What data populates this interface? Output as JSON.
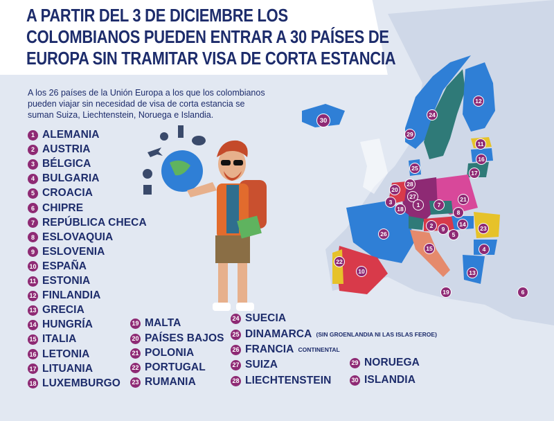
{
  "title": {
    "lines": [
      "A PARTIR DEL 3 DE DICIEMBRE LOS",
      "COLOMBIANOS PUEDEN ENTRAR A 30 PAÍSES DE",
      "EUROPA SIN TRAMITAR VISA DE CORTA ESTANCIA"
    ]
  },
  "intro": {
    "lines": [
      "A los 26 países de la Unión Europa a los que los colombianos",
      "pueden viajar sin necesidad de visa de corta estancia se",
      "suman Suiza, Liechtenstein, Noruega e Islandia."
    ]
  },
  "countries": [
    {
      "num": "1",
      "name": "ALEMANIA",
      "note": ""
    },
    {
      "num": "2",
      "name": "AUSTRIA",
      "note": ""
    },
    {
      "num": "3",
      "name": "BÉLGICA",
      "note": ""
    },
    {
      "num": "4",
      "name": "BULGARIA",
      "note": ""
    },
    {
      "num": "5",
      "name": "CROACIA",
      "note": ""
    },
    {
      "num": "6",
      "name": "CHIPRE",
      "note": ""
    },
    {
      "num": "7",
      "name": "REPÚBLICA CHECA",
      "note": ""
    },
    {
      "num": "8",
      "name": "ESLOVAQUIA",
      "note": ""
    },
    {
      "num": "9",
      "name": "ESLOVENIA",
      "note": ""
    },
    {
      "num": "10",
      "name": "ESPAÑA",
      "note": ""
    },
    {
      "num": "11",
      "name": "ESTONIA",
      "note": ""
    },
    {
      "num": "12",
      "name": "FINLANDIA",
      "note": ""
    },
    {
      "num": "13",
      "name": "GRECIA",
      "note": ""
    },
    {
      "num": "14",
      "name": "HUNGRÍA",
      "note": ""
    },
    {
      "num": "15",
      "name": "ITALIA",
      "note": ""
    },
    {
      "num": "16",
      "name": "LETONIA",
      "note": ""
    },
    {
      "num": "17",
      "name": "LITUANIA",
      "note": ""
    },
    {
      "num": "18",
      "name": "LUXEMBURGO",
      "note": ""
    },
    {
      "num": "19",
      "name": "MALTA",
      "note": ""
    },
    {
      "num": "20",
      "name": "PAÍSES BAJOS",
      "note": ""
    },
    {
      "num": "21",
      "name": "POLONIA",
      "note": ""
    },
    {
      "num": "22",
      "name": "PORTUGAL",
      "note": ""
    },
    {
      "num": "23",
      "name": "RUMANIA",
      "note": ""
    },
    {
      "num": "24",
      "name": "SUECIA",
      "note": ""
    },
    {
      "num": "25",
      "name": "DINAMARCA",
      "note": "(SIN GROENLANDIA NI LAS ISLAS FEROE)"
    },
    {
      "num": "26",
      "name": "FRANCIA",
      "note": "CONTINENTAL"
    },
    {
      "num": "27",
      "name": "SUIZA",
      "note": ""
    },
    {
      "num": "28",
      "name": "LIECHTENSTEIN",
      "note": ""
    },
    {
      "num": "29",
      "name": "NORUEGA",
      "note": ""
    },
    {
      "num": "30",
      "name": "ISLANDIA",
      "note": ""
    }
  ],
  "colors": {
    "title_text": "#1d2c6b",
    "badge": "#8e2a74",
    "background": "#e2e8f2",
    "map_blue": "#2f7fd6",
    "map_teal": "#2f7a78",
    "map_red": "#d83a4a",
    "map_yellow": "#e6c22a"
  }
}
